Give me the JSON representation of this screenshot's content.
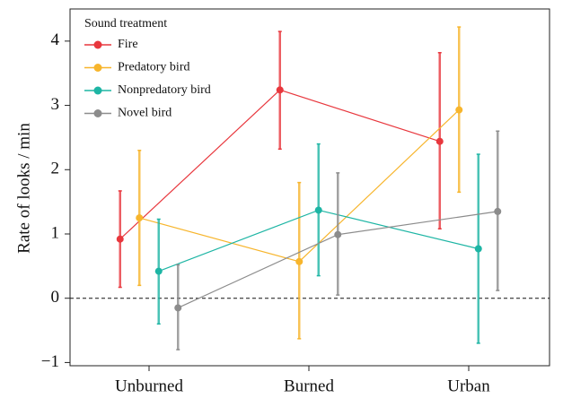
{
  "chart_data": {
    "type": "line_errorbar",
    "ylabel": "Rate of looks / min",
    "legend_title": "Sound treatment",
    "legend": "upper left",
    "categories": [
      "Unburned",
      "Burned",
      "Urban"
    ],
    "ylim": [
      -1.05,
      4.5
    ],
    "yticks": [
      {
        "value": -1,
        "label": "−1"
      },
      0,
      1,
      2,
      3,
      4
    ],
    "reference_line": 0,
    "series": [
      {
        "name": "Fire",
        "color": "#e8373d",
        "values": [
          0.92,
          3.24,
          2.44
        ],
        "error_low": [
          0.17,
          2.32,
          1.08
        ],
        "error_high": [
          1.67,
          4.15,
          3.82
        ]
      },
      {
        "name": "Predatory bird",
        "color": "#f7b52c",
        "values": [
          1.25,
          0.57,
          2.93
        ],
        "error_low": [
          0.2,
          -0.63,
          1.65
        ],
        "error_high": [
          2.3,
          1.8,
          4.22
        ]
      },
      {
        "name": "Nonpredatory bird",
        "color": "#1db5a4",
        "values": [
          0.42,
          1.37,
          0.77
        ],
        "error_low": [
          -0.4,
          0.35,
          -0.7
        ],
        "error_high": [
          1.23,
          2.4,
          2.24
        ]
      },
      {
        "name": "Novel bird",
        "color": "#8c8c8c",
        "values": [
          -0.15,
          0.99,
          1.35
        ],
        "error_low": [
          -0.8,
          0.05,
          0.12
        ],
        "error_high": [
          0.52,
          1.95,
          2.6
        ]
      }
    ]
  }
}
